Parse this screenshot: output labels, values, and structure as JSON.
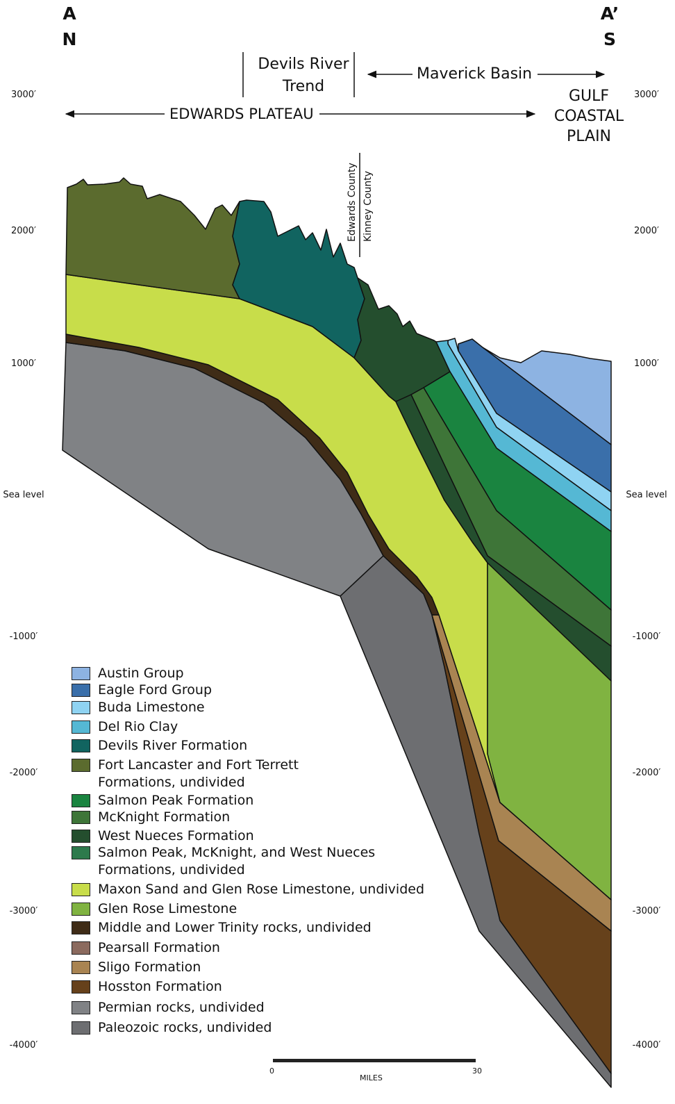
{
  "header": {
    "left_end": {
      "letter": "A",
      "direction": "N"
    },
    "right_end": {
      "letter": "A’",
      "direction": "S"
    }
  },
  "regions": {
    "devils_river_trend": "Devils River Trend",
    "maverick_basin": "Maverick Basin",
    "edwards_plateau": "EDWARDS PLATEAU",
    "gulf_coastal_plain": "GULF COASTAL PLAIN"
  },
  "county_line": {
    "left": "Edwards County",
    "right": "Kinney County"
  },
  "elevation_labels": [
    "3000′",
    "2000′",
    "1000′",
    "Sea level",
    "-1000′",
    "-2000′",
    "-3000′",
    "-4000′"
  ],
  "legend": [
    {
      "label": "Austin Group",
      "color": "#8db3e2"
    },
    {
      "label": "Eagle Ford Group",
      "color": "#3a6faa"
    },
    {
      "label": "Buda Limestone",
      "color": "#8fd3f2"
    },
    {
      "label": "Del Rio Clay",
      "color": "#55b8d4"
    },
    {
      "label": "Devils River Formation",
      "color": "#116460"
    },
    {
      "label": "Fort Lancaster and Fort Terrett Formations, undivided",
      "color": "#5b6b2e"
    },
    {
      "label": "Salmon Peak Formation",
      "color": "#1a8440"
    },
    {
      "label": "McKnight Formation",
      "color": "#3e7538"
    },
    {
      "label": "West Nueces Formation",
      "color": "#244e2e"
    },
    {
      "label": "Salmon Peak, McKnight, and West Nueces Formations, undivided",
      "color": "#2d7a4c"
    },
    {
      "label": "Maxon Sand and Glen Rose Limestone, undivided",
      "color": "#c8dd4a"
    },
    {
      "label": "Glen Rose Limestone",
      "color": "#80b341"
    },
    {
      "label": "Middle and Lower Trinity rocks, undivided",
      "color": "#3f2c17"
    },
    {
      "label": "Pearsall Formation",
      "color": "#8b6a5e"
    },
    {
      "label": "Sligo Formation",
      "color": "#a98452"
    },
    {
      "label": "Hosston Formation",
      "color": "#66411b"
    },
    {
      "label": "Permian rocks, undivided",
      "color": "#808285"
    },
    {
      "label": "Paleozoic rocks, undivided",
      "color": "#6d6e71"
    }
  ],
  "scale_bar": {
    "start": "0",
    "end": "30",
    "unit": "MILES"
  }
}
